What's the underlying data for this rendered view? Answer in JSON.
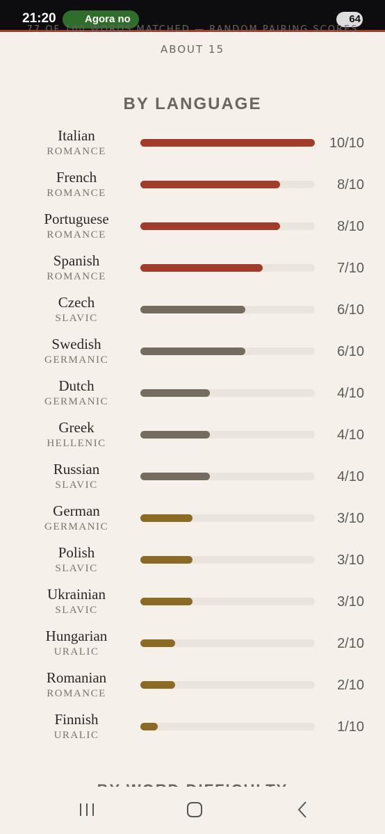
{
  "status_bar": {
    "time": "21:20",
    "notification": "Agora no",
    "battery": "64"
  },
  "summary": {
    "line_1": "77 OF 100 WORDS MATCHED — RANDOM PAIRING SCORES",
    "line_2": "ABOUT 15"
  },
  "section_title": "BY LANGUAGE",
  "xlim": [
    0,
    10
  ],
  "rows": [
    {
      "language": "Italian",
      "family": "ROMANCE",
      "value": 10,
      "value_label": "10/10",
      "color": "#a33b2b"
    },
    {
      "language": "French",
      "family": "ROMANCE",
      "value": 8,
      "value_label": "8/10",
      "color": "#a33b2b"
    },
    {
      "language": "Portuguese",
      "family": "ROMANCE",
      "value": 8,
      "value_label": "8/10",
      "color": "#a33b2b"
    },
    {
      "language": "Spanish",
      "family": "ROMANCE",
      "value": 7,
      "value_label": "7/10",
      "color": "#a33b2b"
    },
    {
      "language": "Czech",
      "family": "SLAVIC",
      "value": 6,
      "value_label": "6/10",
      "color": "#736c5f"
    },
    {
      "language": "Swedish",
      "family": "GERMANIC",
      "value": 6,
      "value_label": "6/10",
      "color": "#736c5f"
    },
    {
      "language": "Dutch",
      "family": "GERMANIC",
      "value": 4,
      "value_label": "4/10",
      "color": "#736c5f"
    },
    {
      "language": "Greek",
      "family": "HELLENIC",
      "value": 4,
      "value_label": "4/10",
      "color": "#736c5f"
    },
    {
      "language": "Russian",
      "family": "SLAVIC",
      "value": 4,
      "value_label": "4/10",
      "color": "#736c5f"
    },
    {
      "language": "German",
      "family": "GERMANIC",
      "value": 3,
      "value_label": "3/10",
      "color": "#8a6a24"
    },
    {
      "language": "Polish",
      "family": "SLAVIC",
      "value": 3,
      "value_label": "3/10",
      "color": "#8a6a24"
    },
    {
      "language": "Ukrainian",
      "family": "SLAVIC",
      "value": 3,
      "value_label": "3/10",
      "color": "#8a6a24"
    },
    {
      "language": "Hungarian",
      "family": "URALIC",
      "value": 2,
      "value_label": "2/10",
      "color": "#8a6a24"
    },
    {
      "language": "Romanian",
      "family": "ROMANCE",
      "value": 2,
      "value_label": "2/10",
      "color": "#8a6a24"
    },
    {
      "language": "Finnish",
      "family": "URALIC",
      "value": 1,
      "value_label": "1/10",
      "color": "#8a6a24"
    }
  ],
  "next_section": "BY WORD DIFFICULTY"
}
